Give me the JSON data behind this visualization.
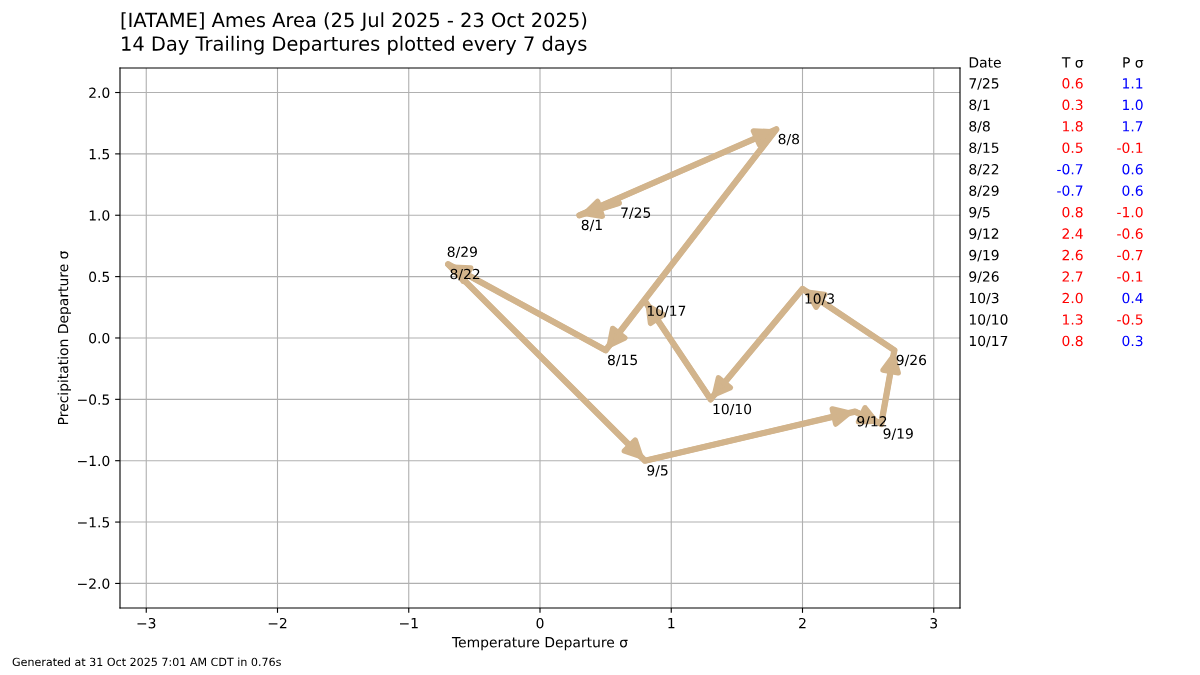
{
  "chart_data": {
    "type": "line",
    "title": "[IATAME] Ames Area (25 Jul 2025 - 23 Oct 2025)",
    "subtitle": "14 Day Trailing Departures plotted every 7 days",
    "xlabel": "Temperature Departure σ",
    "ylabel": "Precipitation Departure σ",
    "x": [
      0.6,
      0.3,
      1.8,
      0.5,
      -0.7,
      -0.7,
      0.8,
      2.4,
      2.6,
      2.7,
      2.0,
      1.3,
      0.8
    ],
    "series": [
      {
        "color": "#d2b48c",
        "values": [
          1.1,
          1.0,
          1.7,
          -0.1,
          0.6,
          0.6,
          -1.0,
          -0.6,
          -0.7,
          -0.1,
          0.4,
          -0.5,
          0.3
        ]
      }
    ],
    "marker": "none",
    "xlim": [
      -3.2,
      3.2
    ],
    "xticks": [
      {
        "value": -3,
        "label": "−3"
      },
      {
        "value": -2,
        "label": "−2"
      },
      {
        "value": -1,
        "label": "−1"
      },
      0,
      1,
      2,
      3
    ],
    "ylim": [
      -2.2,
      2.2
    ],
    "yticks": [
      {
        "value": -2,
        "label": "−2.0"
      },
      {
        "value": -1.5,
        "label": "−1.5"
      },
      {
        "value": -1,
        "label": "−1.0"
      },
      {
        "value": -0.5,
        "label": "−0.5"
      },
      {
        "value": 0,
        "label": "0.0"
      },
      {
        "value": 0.5,
        "label": "0.5"
      },
      {
        "value": 1,
        "label": "1.0"
      },
      {
        "value": 1.5,
        "label": "1.5"
      },
      {
        "value": 2,
        "label": "2.0"
      }
    ],
    "grid": true,
    "annotations": [
      {
        "text": "7/25",
        "x": 0.6,
        "y": 1.1
      },
      {
        "text": "8/1",
        "x": 0.3,
        "y": 1.0
      },
      {
        "text": "8/8",
        "x": 1.8,
        "y": 1.7
      },
      {
        "text": "8/15",
        "x": 0.5,
        "y": -0.1
      },
      {
        "text": "8/22",
        "x": -0.7,
        "y": 0.6
      },
      {
        "text": "8/29",
        "x": -0.7,
        "y": 0.6
      },
      {
        "text": "9/5",
        "x": 0.8,
        "y": -1.0
      },
      {
        "text": "9/12",
        "x": 2.4,
        "y": -0.6
      },
      {
        "text": "9/19",
        "x": 2.6,
        "y": -0.7
      },
      {
        "text": "9/26",
        "x": 2.7,
        "y": -0.1
      },
      {
        "text": "10/3",
        "x": 2.0,
        "y": 0.4
      },
      {
        "text": "10/10",
        "x": 1.3,
        "y": -0.5
      },
      {
        "text": "10/17",
        "x": 0.8,
        "y": 0.3
      },
      "Date",
      "T σ",
      "P σ",
      "7/25",
      "0.6",
      "1.1",
      "8/1",
      "0.3",
      "1.0",
      "8/8",
      "1.8",
      "1.7",
      "8/15",
      "0.5",
      "-0.1",
      "8/22",
      "-0.7",
      "0.6",
      "8/29",
      "-0.7",
      "0.6",
      "9/5",
      "0.8",
      "-1.0",
      "9/12",
      "2.4",
      "-0.6",
      "9/19",
      "2.6",
      "-0.7",
      "9/26",
      "2.7",
      "-0.1",
      "10/3",
      "2.0",
      "0.4",
      "10/10",
      "1.3",
      "-0.5",
      "10/17",
      "0.8",
      "0.3",
      "Generated at 31 Oct 2025 7:01 AM CDT in 0.76s"
    ]
  }
}
